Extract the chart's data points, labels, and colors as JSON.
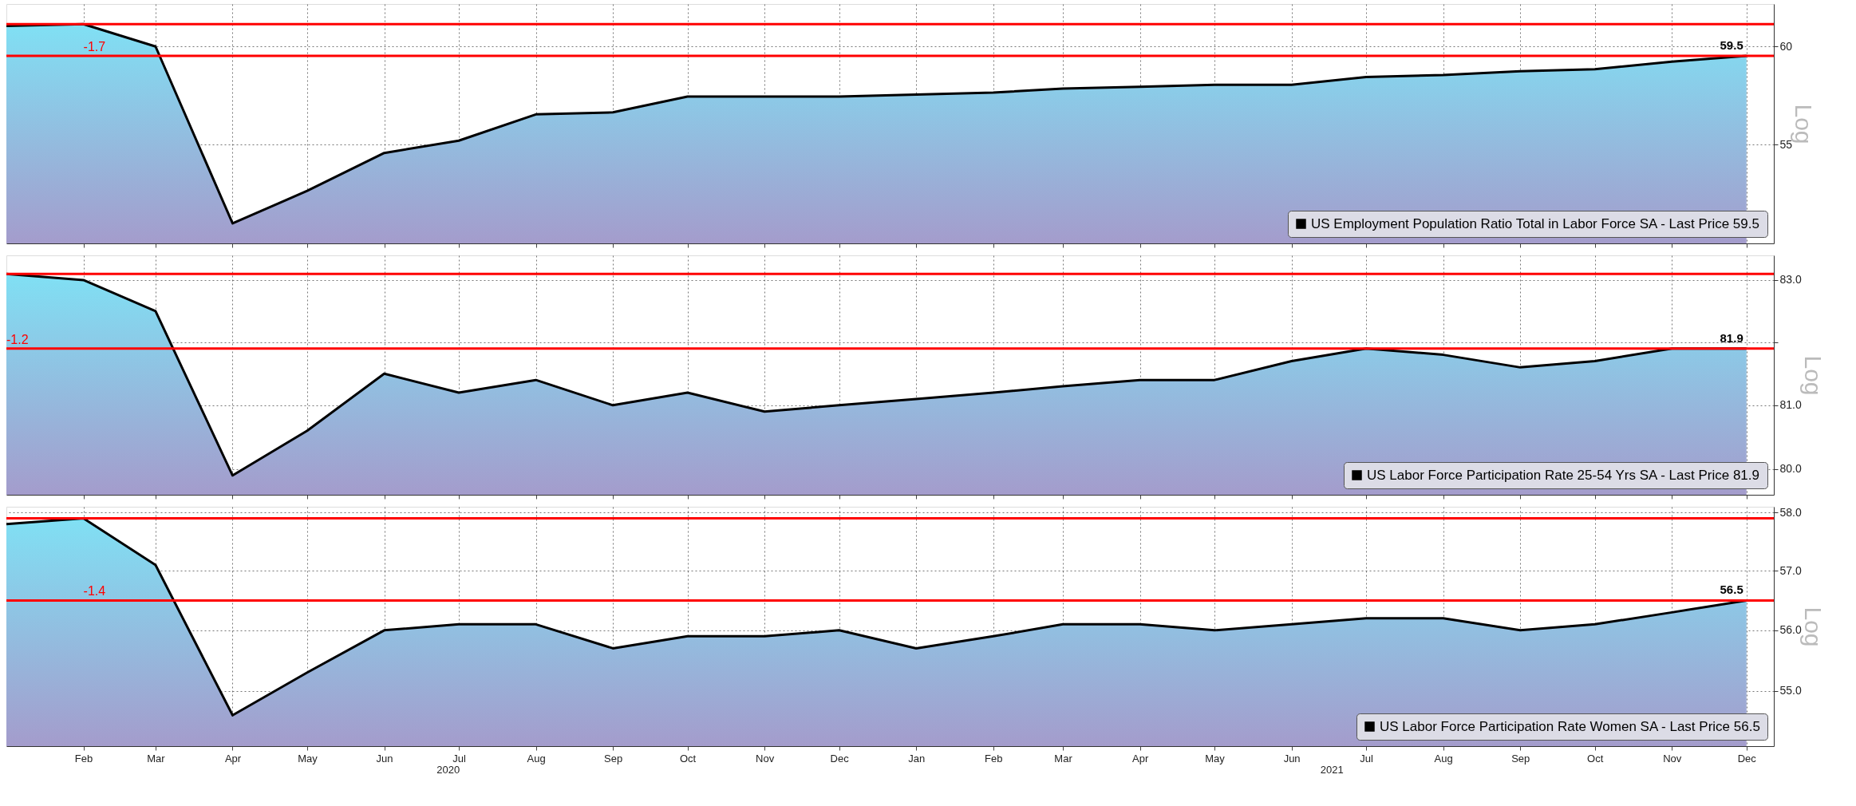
{
  "chart_data": [
    {
      "type": "area",
      "ylabel": "Log",
      "log": true,
      "grid": true,
      "legend": "bottom right",
      "tick_labels": "y",
      "x": [
        "2020-01",
        "2020-02",
        "2020-03",
        "2020-04",
        "2020-05",
        "2020-06",
        "2020-07",
        "2020-08",
        "2020-09",
        "2020-10",
        "2020-11",
        "2020-12",
        "2021-01",
        "2021-02",
        "2021-03",
        "2021-04",
        "2021-05",
        "2021-06",
        "2021-07",
        "2021-08",
        "2021-09",
        "2021-10",
        "2021-11",
        "2021-12"
      ],
      "series": [
        {
          "name": "US Employment Population Ratio Total in Labor Force SA - Last Price 59.5",
          "color": "#000000",
          "values": [
            61.1,
            61.2,
            60.0,
            51.3,
            52.8,
            54.6,
            55.2,
            56.5,
            56.6,
            57.4,
            57.4,
            57.4,
            57.5,
            57.6,
            57.8,
            57.9,
            58.0,
            58.0,
            58.4,
            58.5,
            58.7,
            58.8,
            59.2,
            59.5
          ],
          "value_labels": [
            null,
            null,
            null,
            null,
            null,
            null,
            null,
            null,
            null,
            null,
            null,
            null,
            null,
            null,
            null,
            null,
            null,
            null,
            null,
            null,
            null,
            null,
            null,
            "59.5"
          ]
        }
      ],
      "ylim": [
        50.4,
        62.3
      ],
      "yticks": [
        55,
        60
      ],
      "xlim": [
        "2020-01-01",
        "2021-12-12"
      ],
      "xticks": [
        {
          "value": "2020-02",
          "label": null
        },
        {
          "value": "2020-03",
          "label": null
        },
        {
          "value": "2020-04",
          "label": null
        },
        {
          "value": "2020-05",
          "label": null
        },
        {
          "value": "2020-06",
          "label": null
        },
        {
          "value": "2020-07",
          "label": null
        },
        {
          "value": "2020-08",
          "label": null
        },
        {
          "value": "2020-09",
          "label": null
        },
        {
          "value": "2020-10",
          "label": null
        },
        {
          "value": "2020-11",
          "label": null
        },
        {
          "value": "2020-12",
          "label": null
        },
        {
          "value": "2021-01",
          "label": null
        },
        {
          "value": "2021-02",
          "label": null
        },
        {
          "value": "2021-03",
          "label": null
        },
        {
          "value": "2021-04",
          "label": null
        },
        {
          "value": "2021-05",
          "label": null
        },
        {
          "value": "2021-06",
          "label": null
        },
        {
          "value": "2021-07",
          "label": null
        },
        {
          "value": "2021-08",
          "label": null
        },
        {
          "value": "2021-09",
          "label": null
        },
        {
          "value": "2021-10",
          "label": null
        },
        {
          "value": "2021-11",
          "label": null
        },
        {
          "value": "2021-12",
          "label": null
        }
      ],
      "ref_lines": [
        {
          "axis": "y",
          "value": 61.2,
          "color": "#ff0000"
        },
        {
          "axis": "y",
          "value": 59.5,
          "color": "#ff0000"
        }
      ],
      "annotations": [
        {
          "text": "-1.7",
          "x": "2020-02",
          "y": 59.5
        }
      ]
    },
    {
      "type": "area",
      "ylabel": "Log",
      "log": true,
      "grid": true,
      "legend": "bottom right",
      "tick_labels": "y",
      "x": [
        "2020-01",
        "2020-02",
        "2020-03",
        "2020-04",
        "2020-05",
        "2020-06",
        "2020-07",
        "2020-08",
        "2020-09",
        "2020-10",
        "2020-11",
        "2020-12",
        "2021-01",
        "2021-02",
        "2021-03",
        "2021-04",
        "2021-05",
        "2021-06",
        "2021-07",
        "2021-08",
        "2021-09",
        "2021-10",
        "2021-11",
        "2021-12"
      ],
      "series": [
        {
          "name": "US Labor Force Participation Rate 25-54 Yrs SA - Last Price 81.9",
          "color": "#000000",
          "values": [
            83.1,
            83.0,
            82.5,
            79.9,
            80.6,
            81.5,
            81.2,
            81.4,
            81.0,
            81.2,
            80.9,
            81.0,
            81.1,
            81.2,
            81.3,
            81.4,
            81.4,
            81.7,
            81.9,
            81.8,
            81.6,
            81.7,
            81.9,
            81.9
          ],
          "value_labels": [
            null,
            null,
            null,
            null,
            null,
            null,
            null,
            null,
            null,
            null,
            null,
            null,
            null,
            null,
            null,
            null,
            null,
            null,
            null,
            null,
            null,
            null,
            null,
            "81.9"
          ]
        }
      ],
      "ylim": [
        79.6,
        83.4
      ],
      "yticks": [
        {
          "value": 80,
          "label": "80.0"
        },
        {
          "value": 81,
          "label": "81.0"
        },
        {
          "value": 82,
          "label": null
        },
        {
          "value": 83,
          "label": "83.0"
        }
      ],
      "xlim": [
        "2020-01-01",
        "2021-12-12"
      ],
      "xticks": [
        {
          "value": "2020-02",
          "label": null
        },
        {
          "value": "2020-03",
          "label": null
        },
        {
          "value": "2020-04",
          "label": null
        },
        {
          "value": "2020-05",
          "label": null
        },
        {
          "value": "2020-06",
          "label": null
        },
        {
          "value": "2020-07",
          "label": null
        },
        {
          "value": "2020-08",
          "label": null
        },
        {
          "value": "2020-09",
          "label": null
        },
        {
          "value": "2020-10",
          "label": null
        },
        {
          "value": "2020-11",
          "label": null
        },
        {
          "value": "2020-12",
          "label": null
        },
        {
          "value": "2021-01",
          "label": null
        },
        {
          "value": "2021-02",
          "label": null
        },
        {
          "value": "2021-03",
          "label": null
        },
        {
          "value": "2021-04",
          "label": null
        },
        {
          "value": "2021-05",
          "label": null
        },
        {
          "value": "2021-06",
          "label": null
        },
        {
          "value": "2021-07",
          "label": null
        },
        {
          "value": "2021-08",
          "label": null
        },
        {
          "value": "2021-09",
          "label": null
        },
        {
          "value": "2021-10",
          "label": null
        },
        {
          "value": "2021-11",
          "label": null
        },
        {
          "value": "2021-12",
          "label": null
        }
      ],
      "ref_lines": [
        {
          "axis": "y",
          "value": 83.1,
          "color": "#ff0000"
        },
        {
          "axis": "y",
          "value": 81.9,
          "color": "#ff0000"
        }
      ],
      "annotations": [
        {
          "text": "-1.2",
          "x": "2020-01",
          "y": 81.9
        }
      ]
    },
    {
      "type": "area",
      "ylabel": "Log",
      "log": true,
      "grid": true,
      "legend": "bottom right",
      "x": [
        "2020-01",
        "2020-02",
        "2020-03",
        "2020-04",
        "2020-05",
        "2020-06",
        "2020-07",
        "2020-08",
        "2020-09",
        "2020-10",
        "2020-11",
        "2020-12",
        "2021-01",
        "2021-02",
        "2021-03",
        "2021-04",
        "2021-05",
        "2021-06",
        "2021-07",
        "2021-08",
        "2021-09",
        "2021-10",
        "2021-11",
        "2021-12"
      ],
      "series": [
        {
          "name": "US Labor Force Participation Rate Women SA - Last Price 56.5",
          "color": "#000000",
          "values": [
            57.8,
            57.9,
            57.1,
            54.6,
            55.3,
            56.0,
            56.1,
            56.1,
            55.7,
            55.9,
            55.9,
            56.0,
            55.7,
            55.9,
            56.1,
            56.1,
            56.0,
            56.1,
            56.2,
            56.2,
            56.0,
            56.1,
            56.3,
            56.5
          ],
          "value_labels": [
            null,
            null,
            null,
            null,
            null,
            null,
            null,
            null,
            null,
            null,
            null,
            null,
            null,
            null,
            null,
            null,
            null,
            null,
            null,
            null,
            null,
            null,
            null,
            "56.5"
          ]
        }
      ],
      "ylim": [
        54.1,
        58.1
      ],
      "yticks": [
        {
          "value": 55,
          "label": "55.0"
        },
        {
          "value": 56,
          "label": "56.0"
        },
        {
          "value": 57,
          "label": "57.0"
        },
        {
          "value": 58,
          "label": "58.0"
        }
      ],
      "xlim": [
        "2020-01-01",
        "2021-12-12"
      ],
      "xticks": [
        {
          "value": "2020-02",
          "label": "Feb"
        },
        {
          "value": "2020-03",
          "label": "Mar"
        },
        {
          "value": "2020-04",
          "label": "Apr"
        },
        {
          "value": "2020-05",
          "label": "May"
        },
        {
          "value": "2020-06",
          "label": "Jun"
        },
        {
          "value": "2020-07",
          "label": "Jul"
        },
        {
          "value": "2020-08",
          "label": "Aug"
        },
        {
          "value": "2020-09",
          "label": "Sep"
        },
        {
          "value": "2020-10",
          "label": "Oct"
        },
        {
          "value": "2020-11",
          "label": "Nov"
        },
        {
          "value": "2020-12",
          "label": "Dec"
        },
        {
          "value": "2021-01",
          "label": "Jan"
        },
        {
          "value": "2021-02",
          "label": "Feb"
        },
        {
          "value": "2021-03",
          "label": "Mar"
        },
        {
          "value": "2021-04",
          "label": "Apr"
        },
        {
          "value": "2021-05",
          "label": "May"
        },
        {
          "value": "2021-06",
          "label": "Jun"
        },
        {
          "value": "2021-07",
          "label": "Jul"
        },
        {
          "value": "2021-08",
          "label": "Aug"
        },
        {
          "value": "2021-09",
          "label": "Sep"
        },
        {
          "value": "2021-10",
          "label": "Oct"
        },
        {
          "value": "2021-11",
          "label": "Nov"
        },
        {
          "value": "2021-12",
          "label": "Dec"
        }
      ],
      "ref_lines": [
        {
          "axis": "y",
          "value": 57.9,
          "color": "#ff0000"
        },
        {
          "axis": "y",
          "value": 56.5,
          "color": "#ff0000"
        }
      ],
      "annotations": [
        {
          "text": "-1.4",
          "x": "2020-02",
          "y": 56.5
        },
        "2020",
        "2021"
      ]
    }
  ]
}
